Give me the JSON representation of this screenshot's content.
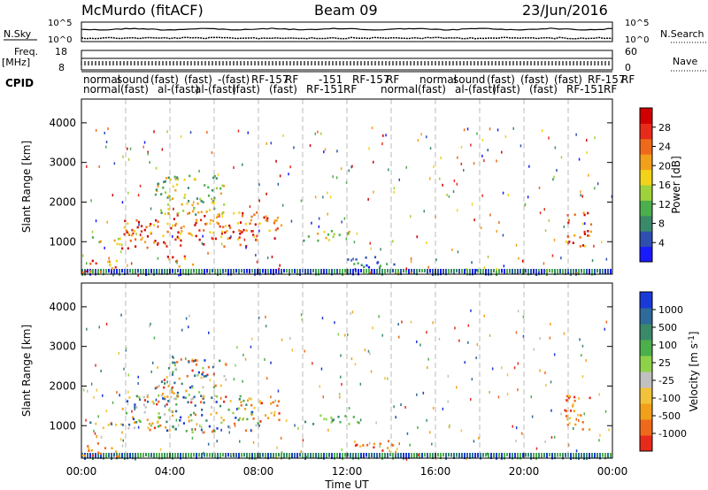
{
  "header": {
    "station": "McMurdo (fitACF)",
    "beam": "Beam 09",
    "date": "23/Jun/2016"
  },
  "status_labels": {
    "nsky": "N.Sky",
    "nsearch": "N.Search",
    "freq": "Freq.",
    "freq_unit": "[MHz]",
    "nave": "Nave",
    "cpid": "CPID",
    "noise_ticks_left": [
      "10^5",
      "10^0"
    ],
    "noise_ticks_right": [
      "10^5",
      "10^0"
    ],
    "freq_ticks": [
      "18",
      "8"
    ],
    "nave_ticks": [
      "60",
      "0"
    ]
  },
  "cpid_labels": {
    "row1": [
      "normal",
      "sound",
      "(fast)",
      "(fast)",
      "-(fast)",
      "RF-157",
      "RF",
      "-151",
      "RF-157",
      "RF",
      "normal",
      "sound",
      "(fast)",
      "(fast)",
      "(fast)",
      "RF-157",
      "RF"
    ],
    "row2": [
      "normal",
      "(fast)",
      "al-(fast)",
      "al-(fast)",
      "(fast)",
      "(fast)",
      "RF-151",
      "RF",
      "normal",
      "(fast)",
      "al-(fast)",
      "(fast)",
      "(fast)",
      "RF-151",
      "RF"
    ]
  },
  "chart_data": [
    {
      "type": "heatmap",
      "name": "Power",
      "ylabel": "Slant Range [km]",
      "xlabel": "Time UT",
      "xticks": [
        "00:00",
        "04:00",
        "08:00",
        "12:00",
        "16:00",
        "20:00",
        "00:00"
      ],
      "yticks": [
        "1000",
        "2000",
        "3000",
        "4000"
      ],
      "ylim": [
        180,
        4600
      ],
      "colorbar": {
        "label": "Power [dB]",
        "ticks": [
          "4",
          "8",
          "12",
          "16",
          "20",
          "24",
          "28"
        ],
        "colors": [
          "#1a1aff",
          "#2e4fb0",
          "#3a8a6a",
          "#4cae4c",
          "#9ed23a",
          "#f2d21a",
          "#f2a01a",
          "#ee6a1a",
          "#e82a1a",
          "#d00000"
        ]
      },
      "echo_regions": [
        {
          "t0": 0.3,
          "t1": 1.8,
          "r0": 950,
          "r1": 1150,
          "level": "medium"
        },
        {
          "t0": 0.0,
          "t1": 1.7,
          "r0": 250,
          "r1": 600,
          "level": "high"
        },
        {
          "t0": 1.8,
          "t1": 4.0,
          "r0": 850,
          "r1": 1650,
          "level": "high"
        },
        {
          "t0": 4.0,
          "t1": 8.0,
          "r0": 900,
          "r1": 1800,
          "level": "high"
        },
        {
          "t0": 3.3,
          "t1": 6.5,
          "r0": 1700,
          "r1": 2700,
          "level": "medium"
        },
        {
          "t0": 3.8,
          "t1": 5.0,
          "r0": 400,
          "r1": 700,
          "level": "high"
        },
        {
          "t0": 8.0,
          "t1": 9.0,
          "r0": 1100,
          "r1": 1700,
          "level": "high"
        },
        {
          "t0": 10.0,
          "t1": 12.5,
          "r0": 1050,
          "r1": 1300,
          "level": "medium"
        },
        {
          "t0": 12.0,
          "t1": 14.2,
          "r0": 350,
          "r1": 650,
          "level": "low"
        },
        {
          "t0": 21.8,
          "t1": 23.0,
          "r0": 900,
          "r1": 1800,
          "level": "high"
        }
      ]
    },
    {
      "type": "heatmap",
      "name": "Velocity",
      "ylabel": "Slant Range [km]",
      "xlabel": "Time UT",
      "xticks": [
        "00:00",
        "04:00",
        "08:00",
        "12:00",
        "16:00",
        "20:00",
        "00:00"
      ],
      "yticks": [
        "1000",
        "2000",
        "3000",
        "4000"
      ],
      "ylim": [
        180,
        4600
      ],
      "colorbar": {
        "label": "Velocity [m s^-1]",
        "ticks": [
          "1000",
          "500",
          "100",
          "25",
          "-25",
          "-100",
          "-500",
          "-1000"
        ],
        "colors": [
          "#1a3ad8",
          "#2e6a9a",
          "#3a8a6a",
          "#4cae4c",
          "#8ed24a",
          "#c0c0c0",
          "#f2c23a",
          "#f2a01a",
          "#ee6a1a",
          "#e82a1a"
        ]
      },
      "echo_regions": [
        {
          "t0": 0.3,
          "t1": 1.8,
          "r0": 950,
          "r1": 1150,
          "level": "mixed"
        },
        {
          "t0": 0.0,
          "t1": 1.7,
          "r0": 250,
          "r1": 600,
          "level": "negative"
        },
        {
          "t0": 1.8,
          "t1": 8.0,
          "r0": 850,
          "r1": 1800,
          "level": "mixed"
        },
        {
          "t0": 3.3,
          "t1": 6.5,
          "r0": 1700,
          "r1": 2700,
          "level": "mixed"
        },
        {
          "t0": 8.0,
          "t1": 9.0,
          "r0": 1100,
          "r1": 1700,
          "level": "negative"
        },
        {
          "t0": 10.0,
          "t1": 12.5,
          "r0": 1050,
          "r1": 1300,
          "level": "positive"
        },
        {
          "t0": 12.0,
          "t1": 14.2,
          "r0": 350,
          "r1": 650,
          "level": "negative"
        },
        {
          "t0": 21.8,
          "t1": 23.0,
          "r0": 900,
          "r1": 1800,
          "level": "negative"
        }
      ]
    }
  ]
}
